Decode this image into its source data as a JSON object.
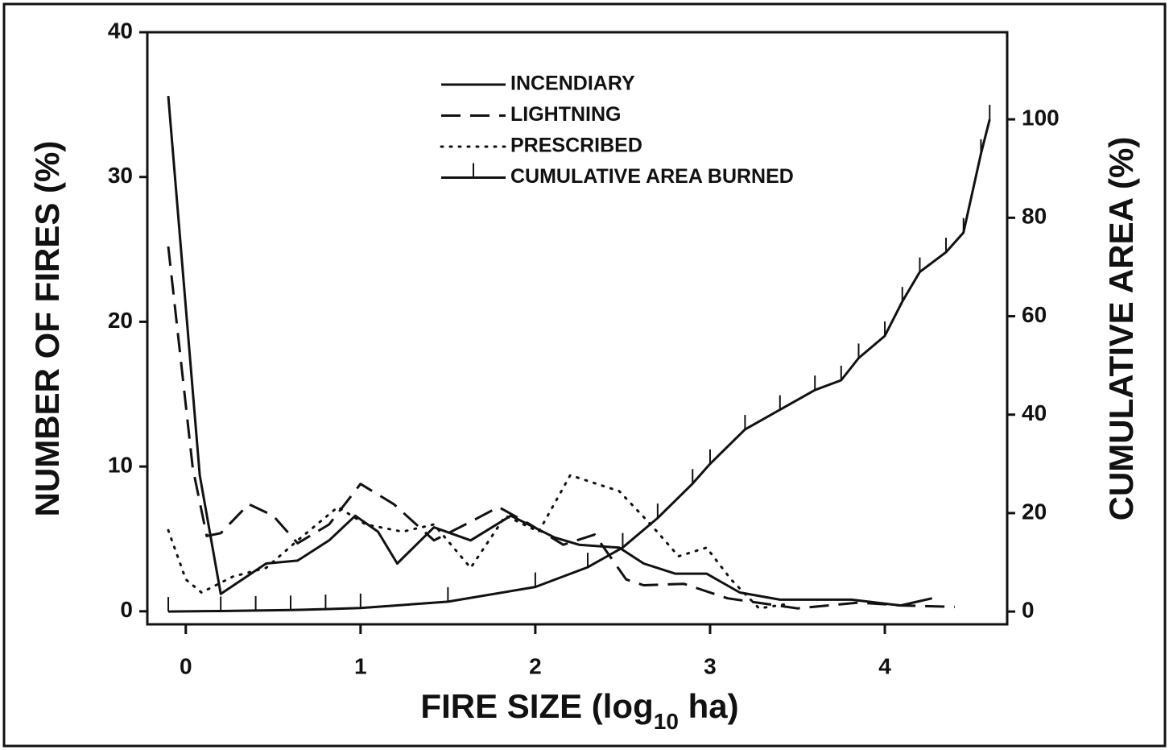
{
  "chart_data": {
    "type": "line",
    "xlabel": [
      "FIRE SIZE (log",
      "10",
      " ha)"
    ],
    "ylabel": "NUMBER OF FIRES (%)",
    "y2label": "CUMULATIVE AREA (%)",
    "xlim": [
      -0.22,
      4.7
    ],
    "ylim": [
      -0.9,
      40
    ],
    "y2lim": [
      -2.6,
      117.7
    ],
    "xticks": [
      0,
      1,
      2,
      3,
      4
    ],
    "yticks": [
      0,
      10,
      20,
      30,
      40
    ],
    "y2ticks": [
      0,
      20,
      40,
      60,
      80,
      100
    ],
    "legend": "upper center",
    "series": [
      {
        "name": "INCENDIARY",
        "color": "#111111",
        "dash": "solid",
        "x": [
          -0.1,
          0.08,
          0.2,
          0.46,
          0.64,
          0.82,
          0.97,
          1.1,
          1.21,
          1.42,
          1.63,
          1.86,
          2.11,
          2.25,
          2.48,
          2.62,
          2.8,
          2.98,
          3.17,
          3.4,
          3.81,
          4.09,
          4.27
        ],
        "values": [
          35.6,
          9.4,
          1.2,
          3.3,
          3.5,
          4.9,
          6.6,
          5.5,
          3.3,
          5.8,
          4.9,
          6.6,
          5.1,
          4.6,
          4.4,
          3.3,
          2.6,
          2.6,
          1.3,
          0.8,
          0.8,
          0.4,
          0.9
        ]
      },
      {
        "name": "LIGHTNING",
        "color": "#111111",
        "dash": "dashed",
        "x": [
          -0.1,
          0.04,
          0.12,
          0.2,
          0.36,
          0.5,
          0.64,
          0.82,
          1.0,
          1.19,
          1.42,
          1.6,
          1.79,
          1.97,
          2.16,
          2.34,
          2.52,
          2.62,
          2.85,
          3.1,
          3.5,
          3.85,
          4.1,
          4.4
        ],
        "values": [
          25.2,
          9.9,
          5.2,
          5.4,
          7.4,
          6.6,
          4.7,
          6.0,
          8.8,
          7.4,
          4.9,
          6.0,
          7.2,
          6.0,
          4.6,
          5.3,
          2.2,
          1.8,
          1.9,
          0.9,
          0.2,
          0.6,
          0.4,
          0.3
        ]
      },
      {
        "name": "PRESCRIBED",
        "color": "#111111",
        "dash": "dotted",
        "x": [
          -0.1,
          0.0,
          0.09,
          0.27,
          0.46,
          0.64,
          0.87,
          1.03,
          1.24,
          1.42,
          1.63,
          1.83,
          2.02,
          2.2,
          2.48,
          2.66,
          2.82,
          2.98,
          3.12,
          3.28,
          3.44
        ],
        "values": [
          5.6,
          2.2,
          1.3,
          2.4,
          3.0,
          4.9,
          7.2,
          6.0,
          5.5,
          6.0,
          3.0,
          6.6,
          5.5,
          9.4,
          8.3,
          6.0,
          3.8,
          4.4,
          2.2,
          0.2,
          0.5
        ]
      },
      {
        "name": "CUMULATIVE AREA BURNED",
        "color": "#111111",
        "dash": "rug",
        "axis": "y2",
        "x": [
          -0.1,
          0.2,
          0.4,
          0.6,
          0.8,
          1.0,
          1.5,
          2.0,
          2.3,
          2.5,
          2.7,
          2.9,
          3.0,
          3.2,
          3.4,
          3.6,
          3.75,
          3.85,
          4.0,
          4.1,
          4.2,
          4.35,
          4.45,
          4.55,
          4.6
        ],
        "values": [
          0,
          0.1,
          0.2,
          0.3,
          0.5,
          0.7,
          2,
          5,
          9,
          13,
          19,
          26,
          30,
          37,
          41,
          45,
          47,
          51.5,
          56,
          63,
          69,
          73,
          77,
          93,
          100
        ]
      }
    ]
  }
}
